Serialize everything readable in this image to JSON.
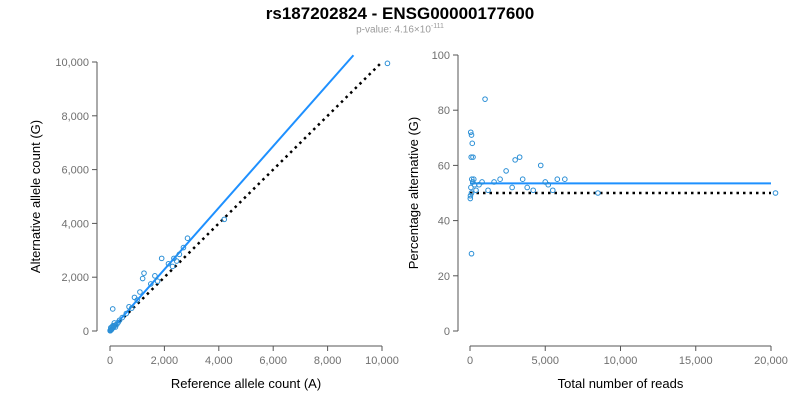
{
  "title": "rs187202824 - ENSG00000177600",
  "subtitle": {
    "prefix": "p-value: 4.16×10",
    "exponent": "-111"
  },
  "colors": {
    "points": "#2b8fd6",
    "fit": "#1e90ff",
    "reference": "#000000",
    "axis": "#555555"
  },
  "chart_data": [
    {
      "type": "scatter",
      "xlabel": "Reference allele count (A)",
      "ylabel": "Alternative allele count (G)",
      "xlim": [
        0,
        10000
      ],
      "ylim": [
        0,
        10000
      ],
      "xticks": [
        0,
        2000,
        4000,
        6000,
        8000,
        10000
      ],
      "yticks": [
        0,
        2000,
        4000,
        6000,
        8000,
        10000
      ],
      "xtick_labels": [
        "0",
        "2,000",
        "4,000",
        "6,000",
        "8,000",
        "10,000"
      ],
      "ytick_labels": [
        "0",
        "2,000",
        "4,000",
        "6,000",
        "8,000",
        "10,000"
      ],
      "points": [
        [
          10200,
          9950
        ],
        [
          4200,
          4150
        ],
        [
          2850,
          3450
        ],
        [
          2700,
          3100
        ],
        [
          2550,
          2850
        ],
        [
          2450,
          2600
        ],
        [
          2350,
          2700
        ],
        [
          2300,
          2400
        ],
        [
          2150,
          2500
        ],
        [
          1900,
          2700
        ],
        [
          1750,
          1850
        ],
        [
          1650,
          2050
        ],
        [
          1500,
          1750
        ],
        [
          1250,
          2150
        ],
        [
          1200,
          1950
        ],
        [
          1100,
          1450
        ],
        [
          1000,
          1150
        ],
        [
          900,
          1250
        ],
        [
          800,
          850
        ],
        [
          700,
          900
        ],
        [
          600,
          650
        ],
        [
          450,
          500
        ],
        [
          350,
          400
        ],
        [
          300,
          320
        ],
        [
          250,
          250
        ],
        [
          200,
          220
        ],
        [
          150,
          180
        ],
        [
          120,
          130
        ],
        [
          100,
          820
        ],
        [
          80,
          100
        ],
        [
          60,
          60
        ],
        [
          40,
          40
        ],
        [
          20,
          30
        ],
        [
          10,
          10
        ],
        [
          5,
          15
        ],
        [
          30,
          120
        ],
        [
          70,
          150
        ],
        [
          110,
          200
        ],
        [
          160,
          300
        ],
        [
          200,
          150
        ]
      ],
      "fit_line": {
        "x": [
          0,
          8950
        ],
        "y": [
          0,
          10250
        ]
      },
      "reference_line": {
        "x": [
          0,
          10000
        ],
        "y": [
          0,
          10000
        ]
      }
    },
    {
      "type": "scatter",
      "xlabel": "Total number of reads",
      "ylabel": "Percentage alternative (G)",
      "xlim": [
        0,
        20000
      ],
      "ylim": [
        0,
        100
      ],
      "xticks": [
        0,
        5000,
        10000,
        15000,
        20000
      ],
      "yticks": [
        0,
        20,
        40,
        60,
        80,
        100
      ],
      "xtick_labels": [
        "0",
        "5,000",
        "10,000",
        "15,000",
        "20,000"
      ],
      "ytick_labels": [
        "0",
        "20",
        "40",
        "60",
        "80",
        "100"
      ],
      "points": [
        [
          50,
          72
        ],
        [
          100,
          71
        ],
        [
          150,
          68
        ],
        [
          80,
          63
        ],
        [
          200,
          63
        ],
        [
          120,
          55
        ],
        [
          60,
          52
        ],
        [
          100,
          50
        ],
        [
          30,
          49
        ],
        [
          20,
          48
        ],
        [
          180,
          54
        ],
        [
          250,
          55
        ],
        [
          300,
          53
        ],
        [
          400,
          51
        ],
        [
          600,
          53
        ],
        [
          800,
          54
        ],
        [
          1000,
          84
        ],
        [
          1200,
          51
        ],
        [
          1600,
          54
        ],
        [
          2000,
          55
        ],
        [
          2400,
          58
        ],
        [
          2800,
          52
        ],
        [
          3000,
          62
        ],
        [
          3300,
          63
        ],
        [
          3500,
          55
        ],
        [
          3800,
          52
        ],
        [
          4200,
          51
        ],
        [
          4700,
          60
        ],
        [
          5000,
          54
        ],
        [
          5200,
          53
        ],
        [
          5500,
          51
        ],
        [
          5800,
          55
        ],
        [
          6300,
          55
        ],
        [
          8500,
          50
        ],
        [
          20300,
          50
        ],
        [
          100,
          28
        ]
      ],
      "fit_line": {
        "x": [
          0,
          20000
        ],
        "y": [
          53.5,
          53.5
        ]
      },
      "reference_line": {
        "x": [
          0,
          20000
        ],
        "y": [
          50,
          50
        ]
      }
    }
  ]
}
